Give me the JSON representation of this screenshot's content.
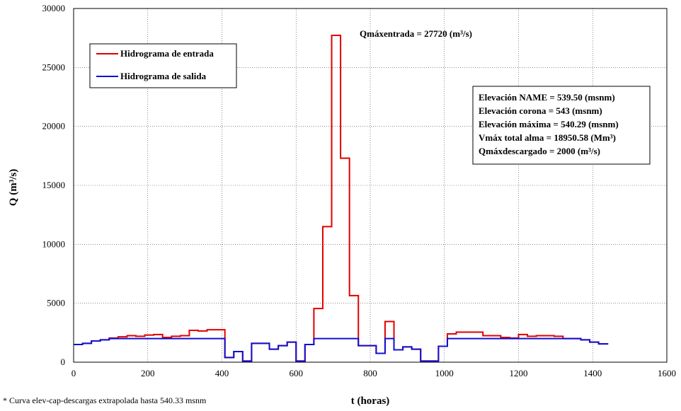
{
  "chart_data": {
    "type": "line",
    "xlabel": "t (horas)",
    "ylabel": "Q (m³/s)",
    "xlim": [
      0,
      1600
    ],
    "ylim": [
      0,
      30000
    ],
    "xticks": [
      0,
      200,
      400,
      600,
      800,
      1000,
      1200,
      1400,
      1600
    ],
    "yticks": [
      0,
      5000,
      10000,
      15000,
      20000,
      25000,
      30000
    ],
    "grid": "dotted",
    "legend_position": "top-left",
    "series": [
      {
        "name": "Hidrograma de entrada",
        "color": "#e00000",
        "style": "step",
        "x": [
          0,
          24,
          48,
          72,
          96,
          120,
          144,
          168,
          192,
          216,
          240,
          264,
          288,
          312,
          336,
          360,
          384,
          408,
          432,
          456,
          480,
          504,
          528,
          552,
          576,
          600,
          624,
          648,
          672,
          696,
          720,
          744,
          768,
          792,
          816,
          840,
          864,
          888,
          912,
          936,
          960,
          984,
          1008,
          1032,
          1056,
          1080,
          1104,
          1128,
          1152,
          1176,
          1200,
          1224,
          1248,
          1272,
          1296,
          1320,
          1344,
          1368,
          1392,
          1416,
          1440
        ],
        "values": [
          1500,
          1600,
          1800,
          1900,
          2050,
          2150,
          2250,
          2200,
          2300,
          2350,
          2100,
          2200,
          2250,
          2700,
          2650,
          2750,
          2750,
          400,
          900,
          100,
          1600,
          1600,
          1100,
          1400,
          1700,
          100,
          1500,
          4550,
          11500,
          27720,
          17300,
          5650,
          1400,
          1400,
          750,
          3450,
          1050,
          1300,
          1100,
          100,
          100,
          1350,
          2400,
          2550,
          2550,
          2550,
          2250,
          2250,
          2100,
          2050,
          2350,
          2200,
          2250,
          2250,
          2200,
          2000,
          2000,
          1900,
          1700,
          1550,
          1500
        ]
      },
      {
        "name": "Hidrograma de salida",
        "color": "#1010d0",
        "style": "step",
        "x": [
          0,
          24,
          48,
          72,
          96,
          120,
          144,
          168,
          192,
          216,
          240,
          264,
          288,
          312,
          336,
          360,
          384,
          408,
          432,
          456,
          480,
          504,
          528,
          552,
          576,
          600,
          624,
          648,
          672,
          696,
          720,
          744,
          768,
          792,
          816,
          840,
          864,
          888,
          912,
          936,
          960,
          984,
          1008,
          1032,
          1056,
          1080,
          1104,
          1128,
          1152,
          1176,
          1200,
          1224,
          1248,
          1272,
          1296,
          1320,
          1344,
          1368,
          1392,
          1416,
          1440
        ],
        "values": [
          1500,
          1600,
          1800,
          1900,
          2000,
          2000,
          2000,
          2000,
          2000,
          2000,
          2000,
          2000,
          2000,
          2000,
          2000,
          2000,
          2000,
          400,
          900,
          100,
          1600,
          1600,
          1100,
          1400,
          1700,
          100,
          1500,
          2000,
          2000,
          2000,
          2000,
          2000,
          1400,
          1400,
          750,
          2000,
          1050,
          1300,
          1100,
          100,
          100,
          1350,
          2000,
          2000,
          2000,
          2000,
          2000,
          2000,
          2000,
          2000,
          2000,
          2000,
          2000,
          2000,
          2000,
          2000,
          2000,
          1900,
          1700,
          1550,
          1500
        ]
      }
    ],
    "annotations": {
      "peak_label": "Qmáxentrada = 27720 (m³/s)",
      "info_box": [
        "Elevación NAME = 539.50 (msnm)",
        "Elevación corona = 543 (msnm)",
        "Elevación máxima = 540.29 (msnm)",
        "Vmáx total alma = 18950.58 (Mm³)",
        "Qmáxdescargado = 2000 (m³/s)"
      ],
      "footnote": "* Curva elev-cap-descargas extrapolada hasta 540.33 msnm"
    }
  }
}
